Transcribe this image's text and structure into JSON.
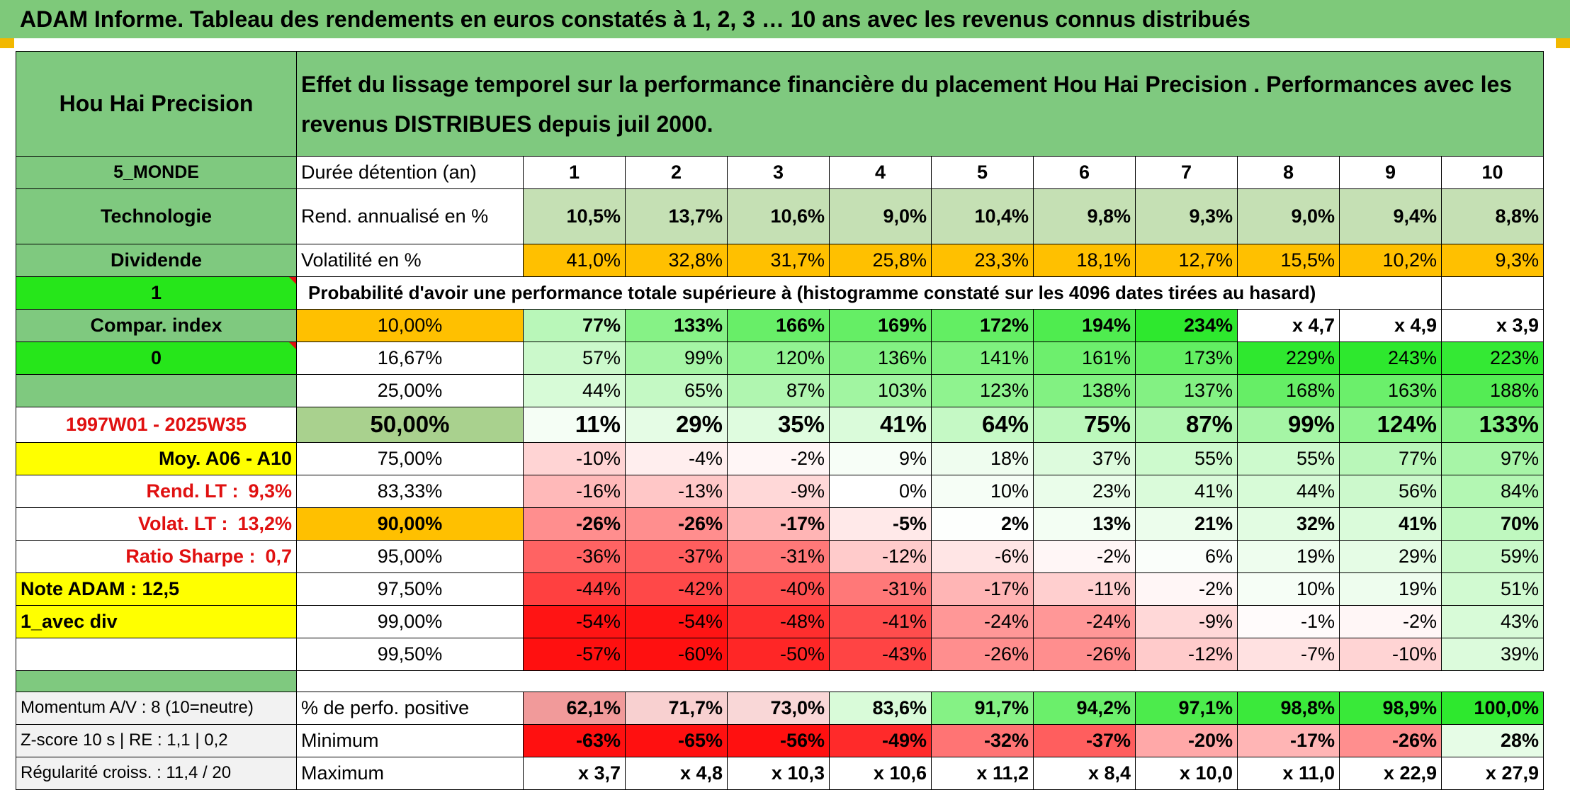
{
  "title": "ADAM Informe. Tableau des rendements en euros constatés à 1, 2, 3 … 10 ans avec les revenus connus distribués",
  "fund_name": "Hou Hai Precision",
  "header_text": "Effet du lissage temporel sur la performance financière du placement Hou Hai Precision . Performances avec les revenus DISTRIBUES depuis juil 2000.",
  "side": {
    "zone": "5_MONDE",
    "sector": "Technologie",
    "type": "Dividende",
    "flag1": "1",
    "compar_index": "Compar. index",
    "flag0": "0",
    "period": "1997W01 - 2025W35",
    "moy": "Moy. A06 - A10",
    "rend_lt_label": "Rend. LT :",
    "rend_lt_value": "9,3%",
    "volat_lt_label": "Volat. LT :",
    "volat_lt_value": "13,2%",
    "sharpe_label": "Ratio Sharpe :",
    "sharpe_value": "0,7",
    "note": "Note ADAM : 12,5",
    "avec_div": "1_avec div"
  },
  "row_labels": {
    "duree": "Durée détention (an)",
    "rend": "Rend. annualisé en %",
    "vol": "Volatilité en %",
    "prob": "Probabilité d'avoir une performance totale supérieure à (histogramme constaté sur les 4096 dates tirées au hasard)"
  },
  "years": [
    "1",
    "2",
    "3",
    "4",
    "5",
    "6",
    "7",
    "8",
    "9",
    "10"
  ],
  "rend": [
    "10,5%",
    "13,7%",
    "10,6%",
    "9,0%",
    "10,4%",
    "9,8%",
    "9,3%",
    "9,0%",
    "9,4%",
    "8,8%"
  ],
  "vol": [
    "41,0%",
    "32,8%",
    "31,7%",
    "25,8%",
    "23,3%",
    "18,1%",
    "12,7%",
    "15,5%",
    "10,2%",
    "9,3%"
  ],
  "prob_rows": [
    {
      "pct": "10,00%",
      "values": [
        "77%",
        "133%",
        "166%",
        "169%",
        "172%",
        "194%",
        "234%",
        "x 4,7",
        "x 4,9",
        "x 3,9"
      ]
    },
    {
      "pct": "16,67%",
      "values": [
        "57%",
        "99%",
        "120%",
        "136%",
        "141%",
        "161%",
        "173%",
        "229%",
        "243%",
        "223%"
      ]
    },
    {
      "pct": "25,00%",
      "values": [
        "44%",
        "65%",
        "87%",
        "103%",
        "123%",
        "138%",
        "137%",
        "168%",
        "163%",
        "188%"
      ]
    },
    {
      "pct": "50,00%",
      "values": [
        "11%",
        "29%",
        "35%",
        "41%",
        "64%",
        "75%",
        "87%",
        "99%",
        "124%",
        "133%"
      ]
    },
    {
      "pct": "75,00%",
      "values": [
        "-10%",
        "-4%",
        "-2%",
        "9%",
        "18%",
        "37%",
        "55%",
        "55%",
        "77%",
        "97%"
      ]
    },
    {
      "pct": "83,33%",
      "values": [
        "-16%",
        "-13%",
        "-9%",
        "0%",
        "10%",
        "23%",
        "41%",
        "44%",
        "56%",
        "84%"
      ]
    },
    {
      "pct": "90,00%",
      "values": [
        "-26%",
        "-26%",
        "-17%",
        "-5%",
        "2%",
        "13%",
        "21%",
        "32%",
        "41%",
        "70%"
      ]
    },
    {
      "pct": "95,00%",
      "values": [
        "-36%",
        "-37%",
        "-31%",
        "-12%",
        "-6%",
        "-2%",
        "6%",
        "19%",
        "29%",
        "59%"
      ]
    },
    {
      "pct": "97,50%",
      "values": [
        "-44%",
        "-42%",
        "-40%",
        "-31%",
        "-17%",
        "-11%",
        "-2%",
        "10%",
        "19%",
        "51%"
      ]
    },
    {
      "pct": "99,00%",
      "values": [
        "-54%",
        "-54%",
        "-48%",
        "-41%",
        "-24%",
        "-24%",
        "-9%",
        "-1%",
        "-2%",
        "43%"
      ]
    },
    {
      "pct": "99,50%",
      "values": [
        "-57%",
        "-60%",
        "-50%",
        "-43%",
        "-26%",
        "-26%",
        "-12%",
        "-7%",
        "-10%",
        "39%"
      ]
    }
  ],
  "bottom_rows": [
    {
      "side": "Momentum A/V : 8 (10=neutre)",
      "label": "% de perfo. positive",
      "values": [
        "62,1%",
        "71,7%",
        "73,0%",
        "83,6%",
        "91,7%",
        "94,2%",
        "97,1%",
        "98,8%",
        "98,9%",
        "100,0%"
      ]
    },
    {
      "side": "Z-score 10 s | RE : 1,1 | 0,2",
      "label": "Minimum",
      "values": [
        "-63%",
        "-65%",
        "-56%",
        "-49%",
        "-32%",
        "-37%",
        "-20%",
        "-17%",
        "-26%",
        "28%"
      ]
    },
    {
      "side": "Régularité croiss. : 11,4 / 20",
      "label": "Maximum",
      "values": [
        "x 3,7",
        "x 4,8",
        "x 10,3",
        "x 10,6",
        "x 11,2",
        "x 8,4",
        "x 10,0",
        "x 11,0",
        "x 22,9",
        "x 27,9"
      ]
    }
  ],
  "colors": {
    "title_green": "#7ec97a",
    "side_green": "#7fc97f",
    "lime": "#26e61a",
    "yellow": "#ffff00",
    "orange": "#ffc000",
    "light_green": "#c5e0b4",
    "olive": "#a9d18e",
    "red_text": "#e01010"
  }
}
